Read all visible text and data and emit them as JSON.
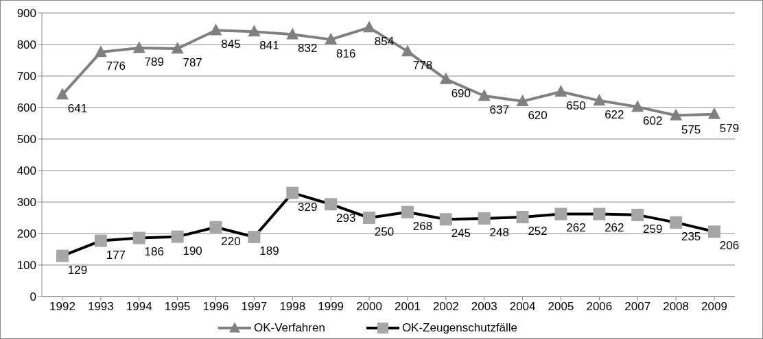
{
  "chart_data": {
    "type": "line",
    "categories": [
      "1992",
      "1993",
      "1994",
      "1995",
      "1996",
      "1997",
      "1998",
      "1999",
      "2000",
      "2001",
      "2002",
      "2003",
      "2004",
      "2005",
      "2006",
      "2007",
      "2008",
      "2009"
    ],
    "series": [
      {
        "name": "OK-Verfahren",
        "color": "#808080",
        "marker": "triangle",
        "values": [
          641,
          776,
          789,
          787,
          845,
          841,
          832,
          816,
          854,
          778,
          690,
          637,
          620,
          650,
          622,
          602,
          575,
          579
        ]
      },
      {
        "name": "OK-Zeugenschutzfälle",
        "color": "#000000",
        "marker": "square",
        "colors": [
          "#a6a6a6",
          "#a6a6a6",
          "#a6a6a6",
          "#a6a6a6",
          "#a6a6a6",
          "#a6a6a6",
          "#a6a6a6",
          "#a6a6a6",
          "#a6a6a6",
          "#a6a6a6",
          "#a6a6a6",
          "#a6a6a6",
          "#a6a6a6",
          "#a6a6a6",
          "#a6a6a6",
          "#a6a6a6",
          "#a6a6a6",
          "#a6a6a6"
        ],
        "values": [
          129,
          177,
          186,
          190,
          220,
          189,
          329,
          293,
          250,
          268,
          245,
          248,
          252,
          262,
          262,
          259,
          235,
          206
        ]
      }
    ],
    "ylim": [
      0,
      900
    ],
    "yticks": [
      0,
      100,
      200,
      300,
      400,
      500,
      600,
      700,
      800,
      900
    ],
    "grid": "y",
    "legend": "bottom",
    "data_labels": true,
    "line_style": "solid"
  }
}
